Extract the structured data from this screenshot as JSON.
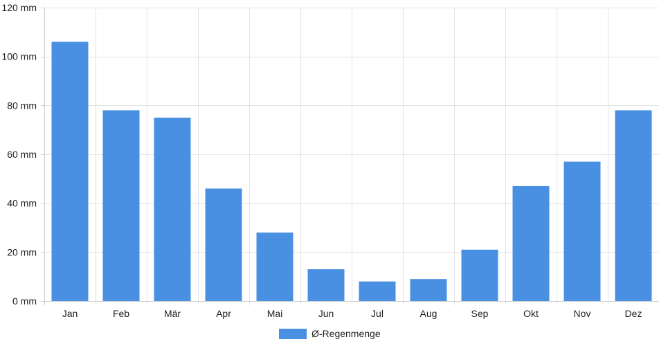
{
  "chart_data": {
    "type": "bar",
    "categories": [
      "Jan",
      "Feb",
      "Mär",
      "Apr",
      "Mai",
      "Jun",
      "Jul",
      "Aug",
      "Sep",
      "Okt",
      "Nov",
      "Dez"
    ],
    "series": [
      {
        "name": "Ø-Regenmenge",
        "color": "#4a90e2",
        "values": [
          106,
          78,
          75,
          46,
          28,
          13,
          8,
          9,
          21,
          47,
          57,
          78
        ]
      }
    ],
    "ylim": [
      0,
      120
    ],
    "yticks": [
      0,
      20,
      40,
      60,
      80,
      100,
      120
    ],
    "yunit": "mm",
    "ytick_labels": [
      "0 mm",
      "20 mm",
      "40 mm",
      "60 mm",
      "80 mm",
      "100 mm",
      "120 mm"
    ],
    "grid": true,
    "legend": {
      "placement": "bottom-center",
      "entries": [
        "Ø-Regenmenge"
      ]
    },
    "title": "",
    "xlabel": "",
    "ylabel": ""
  }
}
